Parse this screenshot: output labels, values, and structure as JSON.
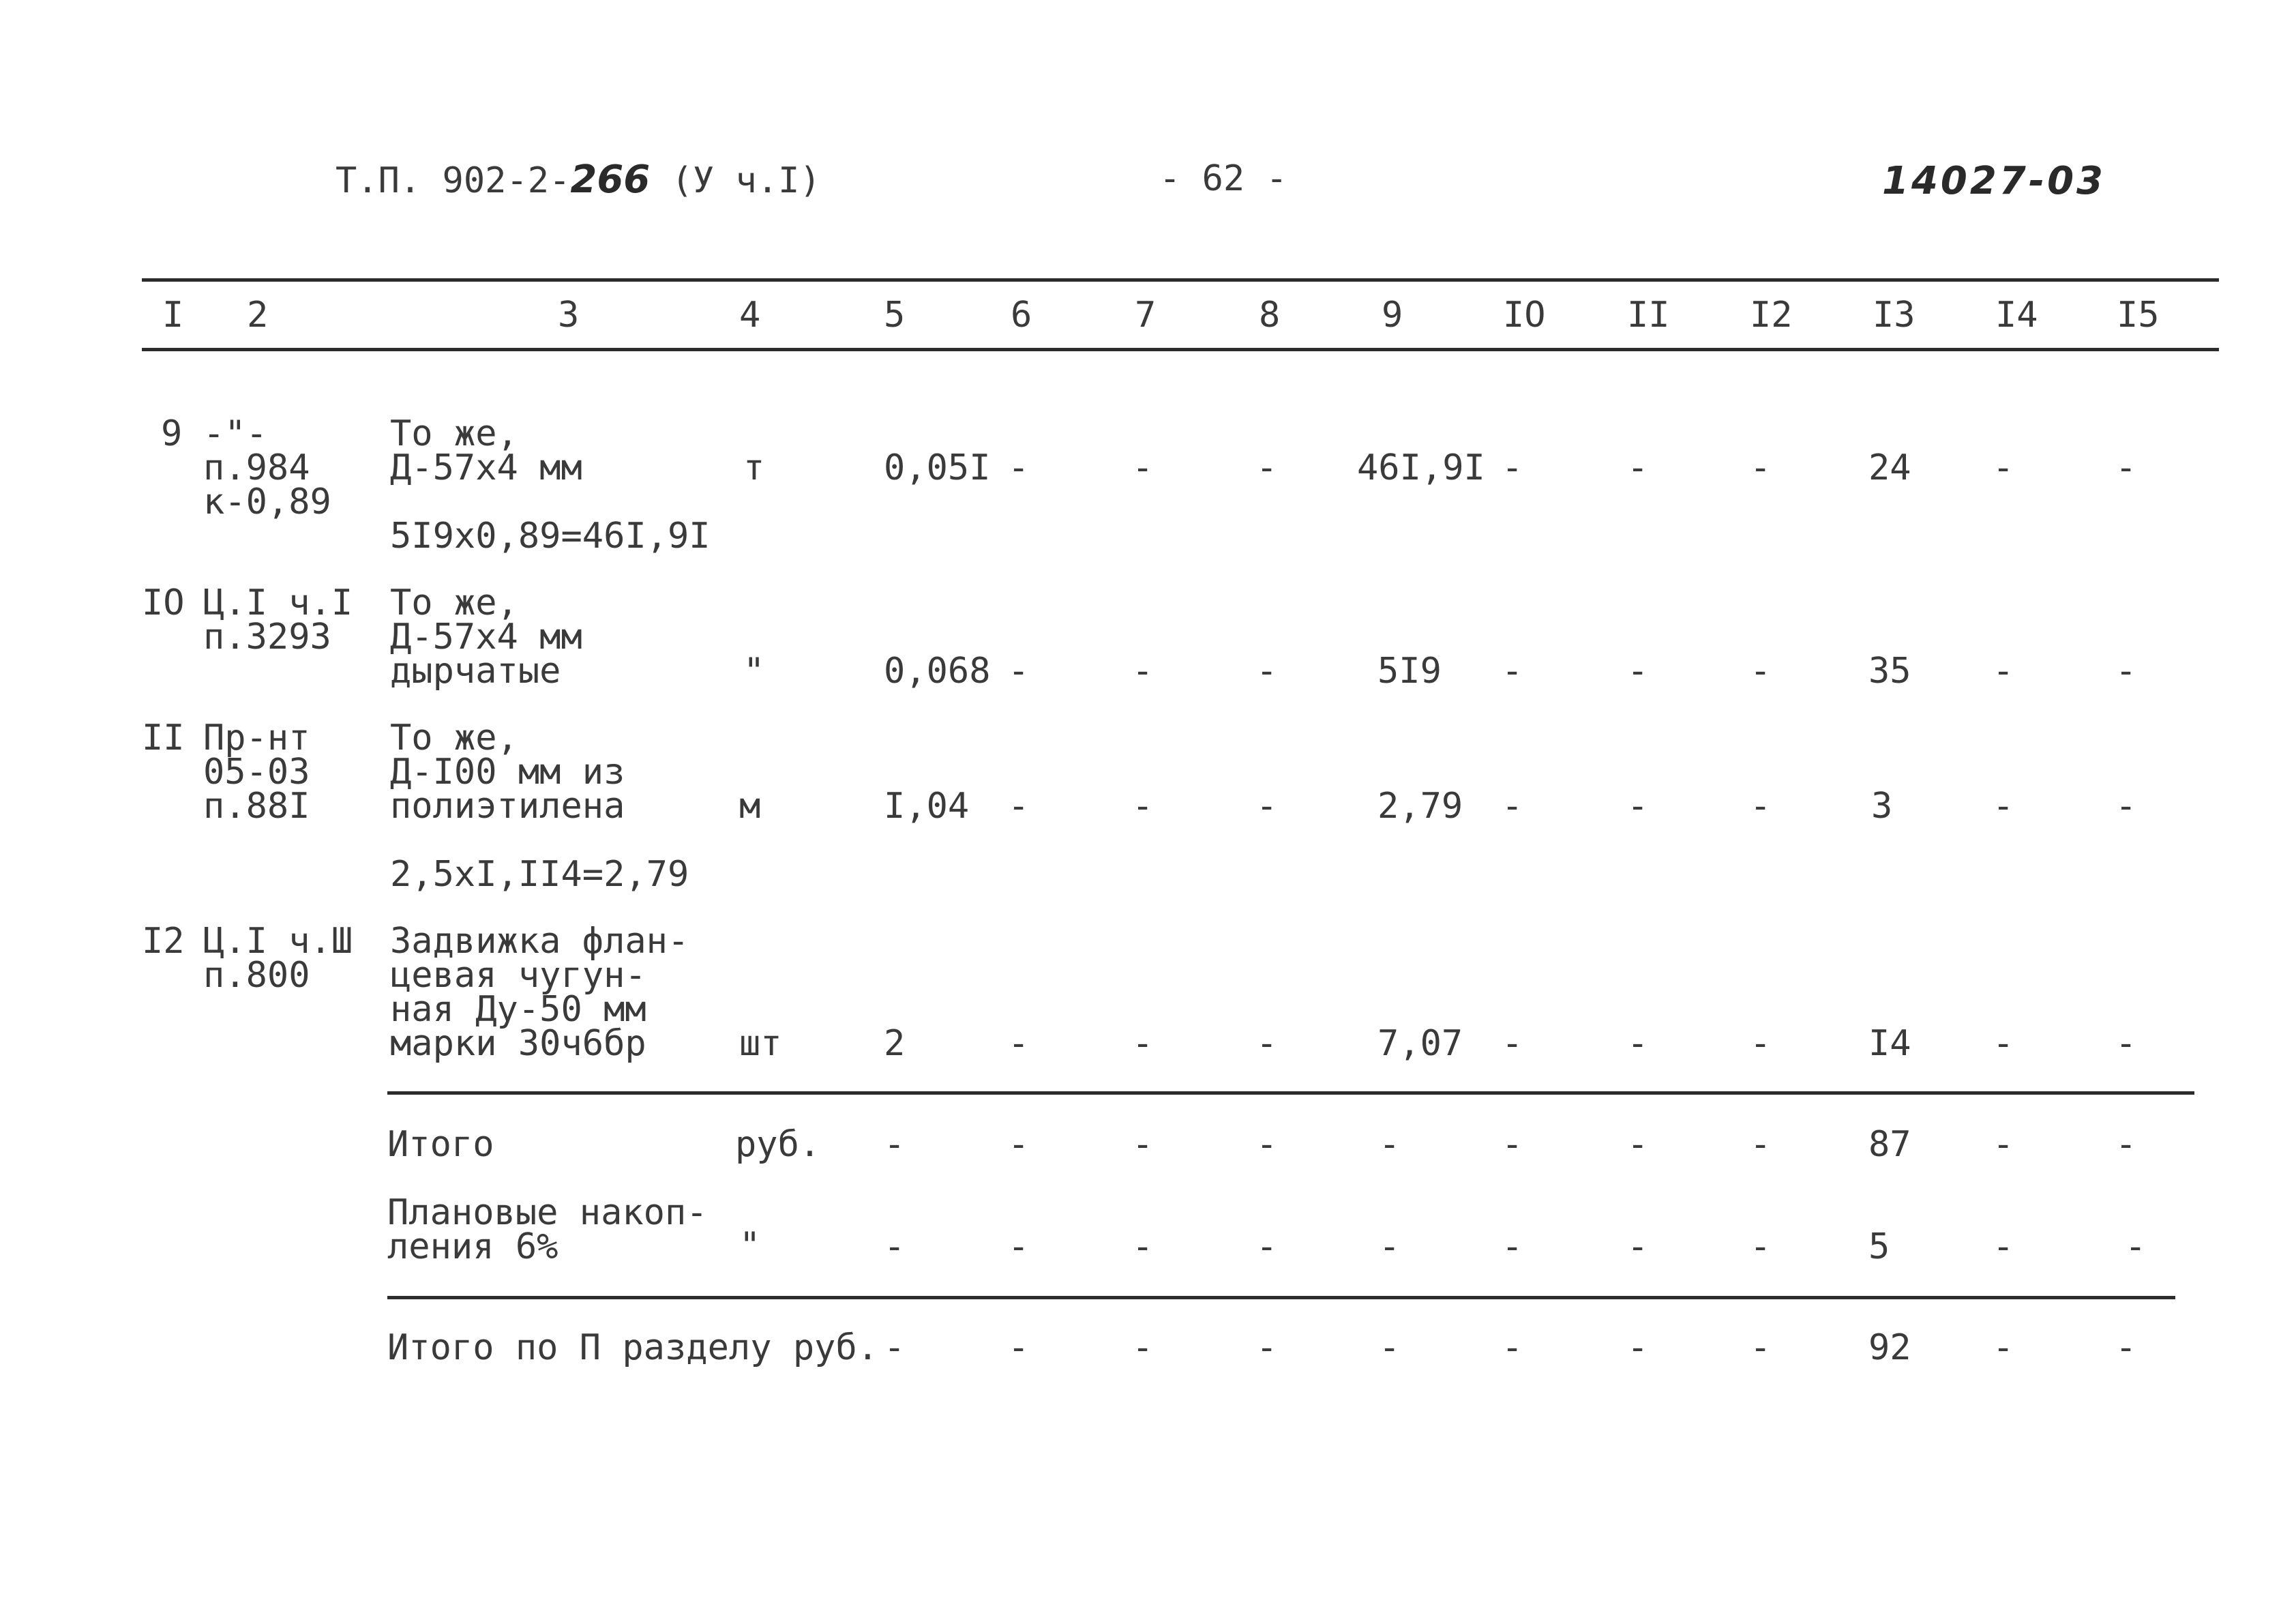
{
  "header": {
    "doc_prefix": "Т.П. 902-2-",
    "doc_number": "266",
    "doc_suffix": "(У ч.I)",
    "page": "- 62 -",
    "archive_number": "14027-03"
  },
  "columns": [
    "I",
    "2",
    "3",
    "4",
    "5",
    "6",
    "7",
    "8",
    "9",
    "IO",
    "II",
    "I2",
    "I3",
    "I4",
    "I5"
  ],
  "rows": [
    {
      "num": "9",
      "source": [
        "-\"-",
        "п.984",
        "к-0,89"
      ],
      "desc": [
        "То же,",
        "Д-57х4 мм"
      ],
      "calc": "5I9х0,89=46I,9I",
      "unit": "т",
      "qty": "0,05I",
      "c6": "-",
      "c7": "-",
      "c8": "-",
      "c9": "46I,9I",
      "c10": "-",
      "c11": "-",
      "c12": "-",
      "c13": "24",
      "c14": "-",
      "c15": "-"
    },
    {
      "num": "IO",
      "source": [
        "Ц.I ч.I",
        "п.3293"
      ],
      "desc": [
        "То же,",
        "Д-57х4 мм",
        "дырчатые"
      ],
      "unit": "\"",
      "qty": "0,068",
      "c6": "-",
      "c7": "-",
      "c8": "-",
      "c9": "5I9",
      "c10": "-",
      "c11": "-",
      "c12": "-",
      "c13": "35",
      "c14": "-",
      "c15": "-"
    },
    {
      "num": "II",
      "source": [
        "Пр-нт",
        "05-03",
        "п.88I"
      ],
      "desc": [
        "То же,",
        "Д-I00 мм из",
        "полиэтилена"
      ],
      "calc": "2,5хI,II4=2,79",
      "unit": "м",
      "qty": "I,04",
      "c6": "-",
      "c7": "-",
      "c8": "-",
      "c9": "2,79",
      "c10": "-",
      "c11": "-",
      "c12": "-",
      "c13": "3",
      "c14": "-",
      "c15": "-"
    },
    {
      "num": "I2",
      "source": [
        "Ц.I ч.Ш",
        "п.800"
      ],
      "desc": [
        "Задвижка флан-",
        "цевая чугун-",
        "ная Ду-50 мм",
        "марки 30ч6бр"
      ],
      "unit": "шт",
      "qty": "2",
      "c6": "-",
      "c7": "-",
      "c8": "-",
      "c9": "7,07",
      "c10": "-",
      "c11": "-",
      "c12": "-",
      "c13": "I4",
      "c14": "-",
      "c15": "-"
    }
  ],
  "totals": [
    {
      "label": [
        "Итого"
      ],
      "unit": "руб.",
      "c5": "-",
      "c6": "-",
      "c7": "-",
      "c8": "-",
      "c9": "-",
      "c10": "-",
      "c11": "-",
      "c12": "-",
      "c13": "87",
      "c14": "-",
      "c15": "-"
    },
    {
      "label": [
        "Плановые накоп-",
        "ления 6%"
      ],
      "unit": "\"",
      "c5": "-",
      "c6": "-",
      "c7": "-",
      "c8": "-",
      "c9": "-",
      "c10": "-",
      "c11": "-",
      "c12": "-",
      "c13": "5",
      "c14": "-",
      "c15": "-"
    },
    {
      "label": [
        "Итого по П разделу руб."
      ],
      "unit": "",
      "c5": "-",
      "c6": "-",
      "c7": "-",
      "c8": "-",
      "c9": "-",
      "c10": "-",
      "c11": "-",
      "c12": "-",
      "c13": "92",
      "c14": "-",
      "c15": "-"
    }
  ]
}
